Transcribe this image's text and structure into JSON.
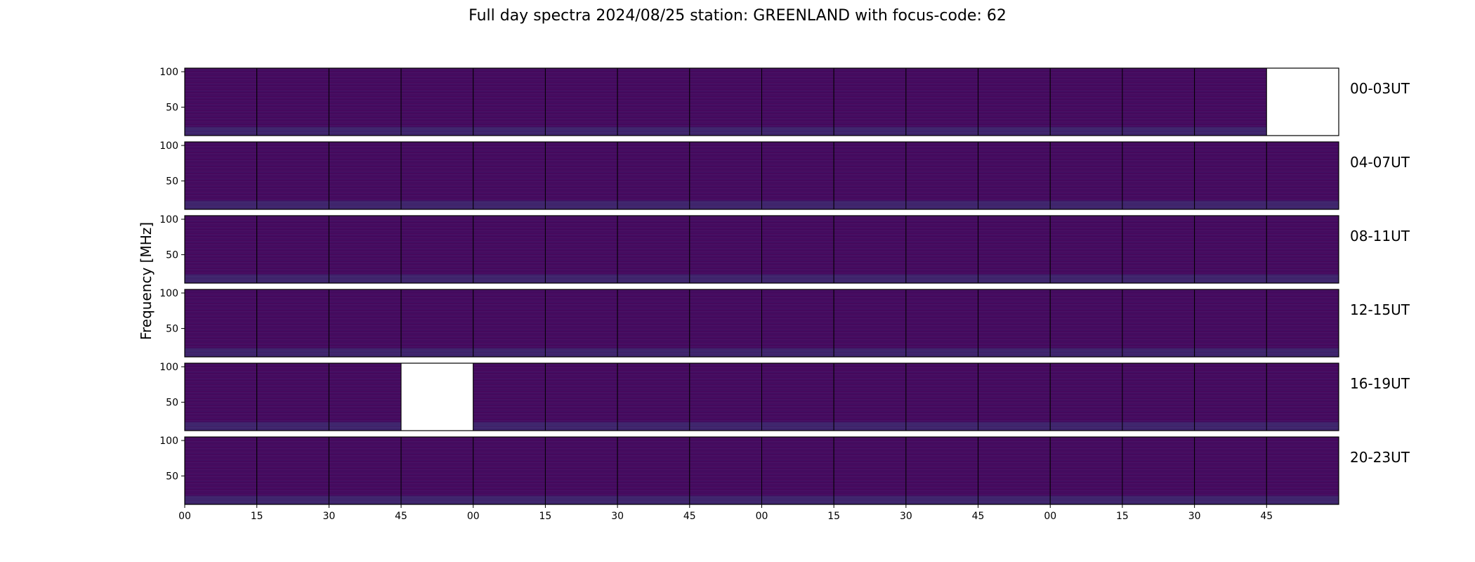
{
  "chart_data": {
    "type": "heatmap",
    "title": "Full day spectra 2024/08/25 station: GREENLAND with focus-code: 62",
    "ylabel": "Frequency [MHz]",
    "xlabel": "",
    "y_ticks": [
      100,
      50
    ],
    "ylim": [
      10,
      105
    ],
    "x_ticks": [
      "00",
      "15",
      "30",
      "45",
      "00",
      "15",
      "30",
      "45",
      "00",
      "15",
      "30",
      "45",
      "00",
      "15",
      "30",
      "45"
    ],
    "minutes_per_panel": 15,
    "panels_per_row": 16,
    "colormap": [
      "#440154",
      "#31688e",
      "#35b779",
      "#fde725"
    ],
    "background_color": "#46085c",
    "rows": [
      {
        "label": "00-03UT",
        "missing_panels": [
          15
        ]
      },
      {
        "label": "04-07UT",
        "missing_panels": []
      },
      {
        "label": "08-11UT",
        "missing_panels": []
      },
      {
        "label": "12-15UT",
        "missing_panels": []
      },
      {
        "label": "16-19UT",
        "missing_panels": [
          3
        ]
      },
      {
        "label": "20-23UT",
        "missing_panels": []
      }
    ]
  }
}
